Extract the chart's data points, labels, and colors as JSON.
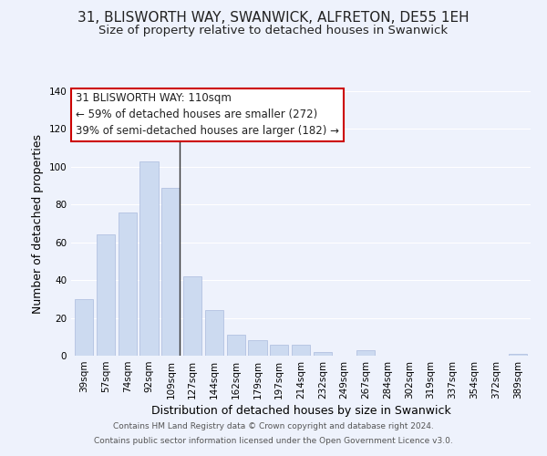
{
  "title": "31, BLISWORTH WAY, SWANWICK, ALFRETON, DE55 1EH",
  "subtitle": "Size of property relative to detached houses in Swanwick",
  "xlabel": "Distribution of detached houses by size in Swanwick",
  "ylabel": "Number of detached properties",
  "bar_color": "#ccdaf0",
  "bar_edge_color": "#aabbdd",
  "categories": [
    "39sqm",
    "57sqm",
    "74sqm",
    "92sqm",
    "109sqm",
    "127sqm",
    "144sqm",
    "162sqm",
    "179sqm",
    "197sqm",
    "214sqm",
    "232sqm",
    "249sqm",
    "267sqm",
    "284sqm",
    "302sqm",
    "319sqm",
    "337sqm",
    "354sqm",
    "372sqm",
    "389sqm"
  ],
  "values": [
    30,
    64,
    76,
    103,
    89,
    42,
    24,
    11,
    8,
    6,
    6,
    2,
    0,
    3,
    0,
    0,
    0,
    0,
    0,
    0,
    1
  ],
  "ylim": [
    0,
    140
  ],
  "yticks": [
    0,
    20,
    40,
    60,
    80,
    100,
    120,
    140
  ],
  "annotation_line1": "31 BLISWORTH WAY: 110sqm",
  "annotation_line2": "← 59% of detached houses are smaller (272)",
  "annotation_line3": "39% of semi-detached houses are larger (182) →",
  "annotation_box_color": "#ffffff",
  "annotation_box_edge_color": "#cc0000",
  "marker_bar_index": 4,
  "footer_line1": "Contains HM Land Registry data © Crown copyright and database right 2024.",
  "footer_line2": "Contains public sector information licensed under the Open Government Licence v3.0.",
  "background_color": "#eef2fc",
  "grid_color": "#ffffff",
  "title_fontsize": 11,
  "subtitle_fontsize": 9.5,
  "axis_label_fontsize": 9,
  "tick_fontsize": 7.5,
  "annotation_fontsize": 8.5,
  "footer_fontsize": 6.5
}
